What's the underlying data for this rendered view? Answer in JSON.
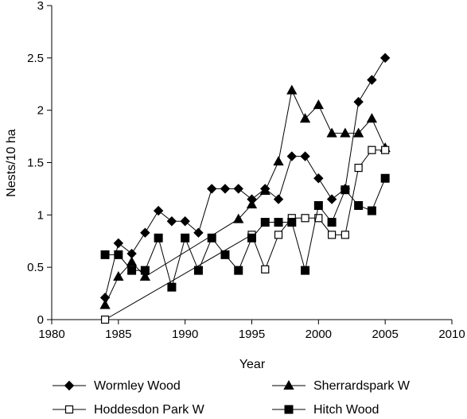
{
  "chart_data": {
    "type": "line",
    "xlabel": "Year",
    "ylabel": "Nests/10 ha",
    "xlim": [
      1980,
      2010
    ],
    "ylim": [
      0,
      3
    ],
    "xticks": [
      "1980",
      "1985",
      "1990",
      "1995",
      "2000",
      "2005",
      "2010"
    ],
    "yticks": [
      "0",
      "0.5",
      "1",
      "1.5",
      "2",
      "2.5",
      "3"
    ],
    "grid": false,
    "legend_position": "bottom",
    "series": [
      {
        "name": "Wormley Wood",
        "marker": "diamond-filled",
        "color": "#000000",
        "x": [
          1984,
          1985,
          1986,
          1987,
          1988,
          1989,
          1990,
          1991,
          1992,
          1993,
          1994,
          1995,
          1996,
          1997,
          1998,
          1999,
          2000,
          2001,
          2002,
          2003,
          2004,
          2005
        ],
        "y": [
          0.21,
          0.73,
          0.63,
          0.83,
          1.04,
          0.94,
          0.94,
          0.83,
          1.25,
          1.25,
          1.25,
          1.15,
          1.25,
          1.15,
          1.56,
          1.56,
          1.35,
          1.15,
          1.25,
          2.08,
          2.29,
          2.5
        ]
      },
      {
        "name": "Sherrardspark W",
        "marker": "triangle-filled",
        "color": "#000000",
        "x": [
          1984,
          1985,
          1986,
          1987,
          1994,
          1995,
          1996,
          1997,
          1998,
          1999,
          2000,
          2001,
          2002,
          2003,
          2004,
          2005
        ],
        "y": [
          0.14,
          0.41,
          0.55,
          0.41,
          0.96,
          1.1,
          1.23,
          1.51,
          2.19,
          1.92,
          2.05,
          1.78,
          1.78,
          1.78,
          1.92,
          1.64
        ]
      },
      {
        "name": "Hoddesdon Park W",
        "marker": "square-open",
        "color": "#000000",
        "x": [
          1984,
          1995,
          1996,
          1997,
          1998,
          1999,
          2000,
          2001,
          2002,
          2003,
          2004,
          2005
        ],
        "y": [
          0.0,
          0.81,
          0.48,
          0.81,
          0.97,
          0.97,
          0.97,
          0.81,
          0.81,
          1.45,
          1.62,
          1.62
        ]
      },
      {
        "name": "Hitch Wood",
        "marker": "square-filled",
        "color": "#000000",
        "x": [
          1984,
          1985,
          1986,
          1987,
          1988,
          1989,
          1990,
          1991,
          1992,
          1993,
          1994,
          1995,
          1996,
          1997,
          1998,
          1999,
          2000,
          2001,
          2002,
          2003,
          2004,
          2005
        ],
        "y": [
          0.62,
          0.62,
          0.47,
          0.47,
          0.78,
          0.31,
          0.78,
          0.47,
          0.78,
          0.62,
          0.47,
          0.78,
          0.93,
          0.93,
          0.93,
          0.47,
          1.09,
          0.93,
          1.24,
          1.09,
          1.04,
          1.35
        ]
      }
    ]
  }
}
